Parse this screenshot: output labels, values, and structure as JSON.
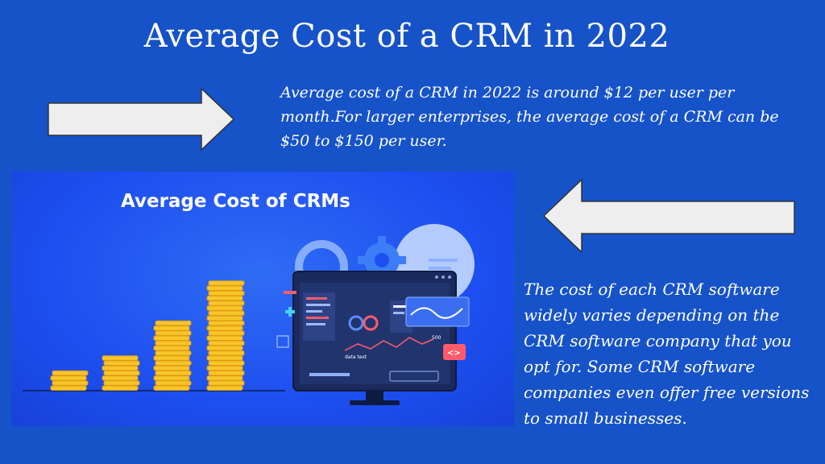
{
  "slide": {
    "title": "Average Cost of a CRM in 2022",
    "paragraph_top": "Average cost of a CRM in 2022 is around $12 per user per month.For larger enterprises, the average cost of a CRM can be $50 to $150 per user.",
    "paragraph_bottom": "The cost of each CRM software widely varies depending on the CRM software company that you opt for. Some CRM software companies even offer free versions to small businesses."
  },
  "illustration": {
    "heading": "Average Cost of CRMs",
    "screen_label": "data text",
    "chart_label": "500",
    "code_glyph": "<>",
    "coin_stacks": [
      4,
      7,
      14,
      22
    ]
  },
  "colors": {
    "background": "#1652c8",
    "illustration_bg": "#1d4ff0",
    "coin": "#f7c62a",
    "coin_edge": "#e39b12",
    "arrow_fill": "#eeeeee"
  }
}
